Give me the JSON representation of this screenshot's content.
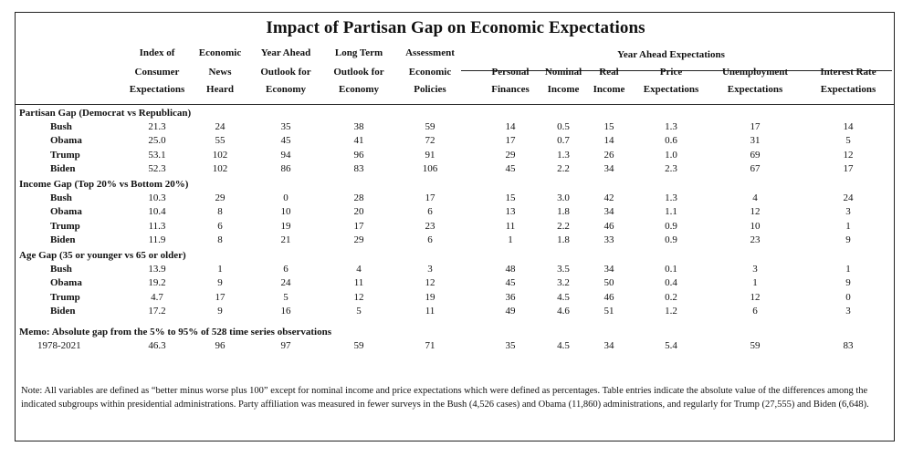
{
  "title": "Impact of Partisan Gap on Economic Expectations",
  "headers": {
    "index": [
      "Index of",
      "Consumer",
      "Expectations"
    ],
    "news": [
      "Economic",
      "News",
      "Heard"
    ],
    "year_ahead": [
      "Year Ahead",
      "Outlook for",
      "Economy"
    ],
    "long_term": [
      "Long Term",
      "Outlook for",
      "Economy"
    ],
    "assessment": [
      "Assessment",
      "Economic",
      "Policies"
    ],
    "group_label": "Year Ahead Expectations",
    "personal": [
      "Personal",
      "Finances"
    ],
    "nominal": [
      "Nominal",
      "Income"
    ],
    "real": [
      "Real",
      "Income"
    ],
    "price": [
      "Price",
      "Expectations"
    ],
    "unemployment": [
      "Unemployment",
      "Expectations"
    ],
    "interest": [
      "Interest Rate",
      "Expectations"
    ]
  },
  "sections": [
    {
      "label": "Partisan Gap (Democrat vs Republican)",
      "rows": [
        {
          "name": "Bush",
          "values": [
            "21.3",
            "24",
            "35",
            "38",
            "59",
            "14",
            "0.5",
            "15",
            "1.3",
            "17",
            "14"
          ]
        },
        {
          "name": "Obama",
          "values": [
            "25.0",
            "55",
            "45",
            "41",
            "72",
            "17",
            "0.7",
            "14",
            "0.6",
            "31",
            "5"
          ]
        },
        {
          "name": "Trump",
          "values": [
            "53.1",
            "102",
            "94",
            "96",
            "91",
            "29",
            "1.3",
            "26",
            "1.0",
            "69",
            "12"
          ]
        },
        {
          "name": "Biden",
          "values": [
            "52.3",
            "102",
            "86",
            "83",
            "106",
            "45",
            "2.2",
            "34",
            "2.3",
            "67",
            "17"
          ]
        }
      ]
    },
    {
      "label": "Income Gap (Top 20% vs Bottom 20%)",
      "rows": [
        {
          "name": "Bush",
          "values": [
            "10.3",
            "29",
            "0",
            "28",
            "17",
            "15",
            "3.0",
            "42",
            "1.3",
            "4",
            "24"
          ]
        },
        {
          "name": "Obama",
          "values": [
            "10.4",
            "8",
            "10",
            "20",
            "6",
            "13",
            "1.8",
            "34",
            "1.1",
            "12",
            "3"
          ]
        },
        {
          "name": "Trump",
          "values": [
            "11.3",
            "6",
            "19",
            "17",
            "23",
            "11",
            "2.2",
            "46",
            "0.9",
            "10",
            "1"
          ]
        },
        {
          "name": "Biden",
          "values": [
            "11.9",
            "8",
            "21",
            "29",
            "6",
            "1",
            "1.8",
            "33",
            "0.9",
            "23",
            "9"
          ]
        }
      ]
    },
    {
      "label": "Age Gap (35 or younger vs 65 or older)",
      "rows": [
        {
          "name": "Bush",
          "values": [
            "13.9",
            "1",
            "6",
            "4",
            "3",
            "48",
            "3.5",
            "34",
            "0.1",
            "3",
            "1"
          ]
        },
        {
          "name": "Obama",
          "values": [
            "19.2",
            "9",
            "24",
            "11",
            "12",
            "45",
            "3.2",
            "50",
            "0.4",
            "1",
            "9"
          ]
        },
        {
          "name": "Trump",
          "values": [
            "4.7",
            "17",
            "5",
            "12",
            "19",
            "36",
            "4.5",
            "46",
            "0.2",
            "12",
            "0"
          ]
        },
        {
          "name": "Biden",
          "values": [
            "17.2",
            "9",
            "16",
            "5",
            "11",
            "49",
            "4.6",
            "51",
            "1.2",
            "6",
            "3"
          ]
        }
      ]
    }
  ],
  "memo": {
    "label": "Memo: Absolute gap from the 5% to 95% of 528 time series observations",
    "row": {
      "name": "1978-2021",
      "values": [
        "46.3",
        "96",
        "97",
        "59",
        "71",
        "35",
        "4.5",
        "34",
        "5.4",
        "59",
        "83"
      ]
    }
  },
  "note": "Note: All variables are defined as “better minus worse plus 100” except for nominal income and price expectations which were defined as percentages.  Table entries indicate the absolute value of the differences among the indicated subgroups within presidential administrations.  Party affiliation was measured in fewer surveys in the Bush (4,526 cases) and Obama (11,860) administrations, and regularly for Trump (27,555) and Biden (6,648)."
}
